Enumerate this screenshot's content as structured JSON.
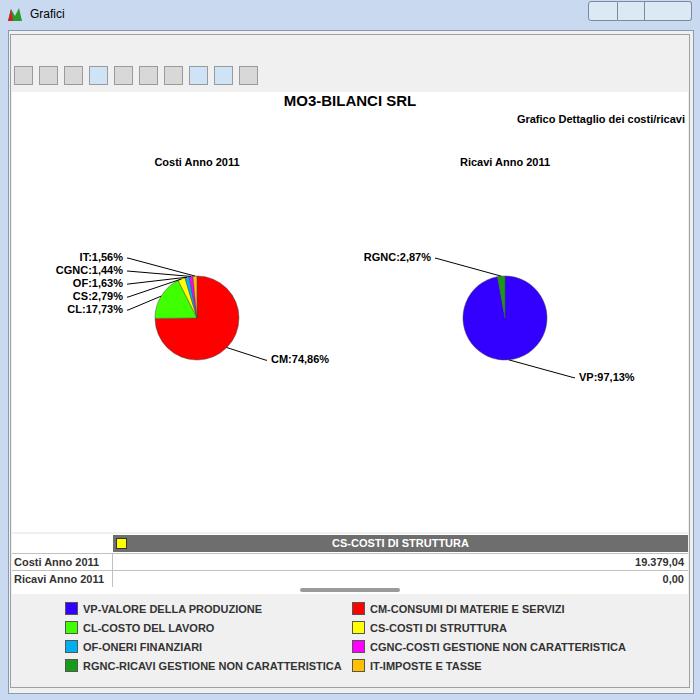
{
  "window": {
    "title": "Grafici"
  },
  "header": {
    "title": "MO3-BILANCI SRL",
    "subtitle": "Grafico Dettaglio dei costi/ricavi"
  },
  "chart_data": [
    {
      "type": "pie",
      "title": "Costi Anno 2011",
      "categories": [
        "CM",
        "CL",
        "CS",
        "OF",
        "CGNC",
        "IT"
      ],
      "values": [
        74.86,
        17.73,
        2.79,
        1.63,
        1.44,
        1.56
      ],
      "value_labels": [
        "CM:74,86%",
        "CL:17,73%",
        "CS:2,79%",
        "OF:1,63%",
        "CGNC:1,44%",
        "IT:1,56%"
      ],
      "colors": [
        "#ff0000",
        "#40ff00",
        "#ffff00",
        "#00b0f0",
        "#ff00ff",
        "#ffc000"
      ],
      "data_labels": true
    },
    {
      "type": "pie",
      "title": "Ricavi Anno 2011",
      "categories": [
        "VP",
        "RGNC"
      ],
      "values": [
        97.13,
        2.87
      ],
      "value_labels": [
        "VP:97,13%",
        "RGNC:2,87%"
      ],
      "colors": [
        "#3300ff",
        "#1a9a1a"
      ],
      "data_labels": true
    }
  ],
  "table": {
    "header": {
      "label": "CS-COSTI DI STRUTTURA",
      "color": "#ffff00"
    },
    "rows": [
      {
        "label": "Costi Anno 2011",
        "value": "19.379,04"
      },
      {
        "label": "Ricavi Anno 2011",
        "value": "0,00"
      }
    ]
  },
  "legend": [
    {
      "name": "VP-VALORE DELLA PRODUZIONE",
      "color": "#3300ff"
    },
    {
      "name": "CM-CONSUMI DI MATERIE E SERVIZI",
      "color": "#ff0000"
    },
    {
      "name": "CL-COSTO DEL LAVORO",
      "color": "#40ff00"
    },
    {
      "name": "CS-COSTI DI STRUTTURA",
      "color": "#ffff00"
    },
    {
      "name": "OF-ONERI FINANZIARI",
      "color": "#00b0f0"
    },
    {
      "name": "CGNC-COSTI GESTIONE NON CARATTERISTICA",
      "color": "#ff00ff"
    },
    {
      "name": "RGNC-RICAVI GESTIONE NON CARATTERISTICA",
      "color": "#1a9a1a"
    },
    {
      "name": "IT-IMPOSTE E TASSE",
      "color": "#ffc000"
    }
  ]
}
